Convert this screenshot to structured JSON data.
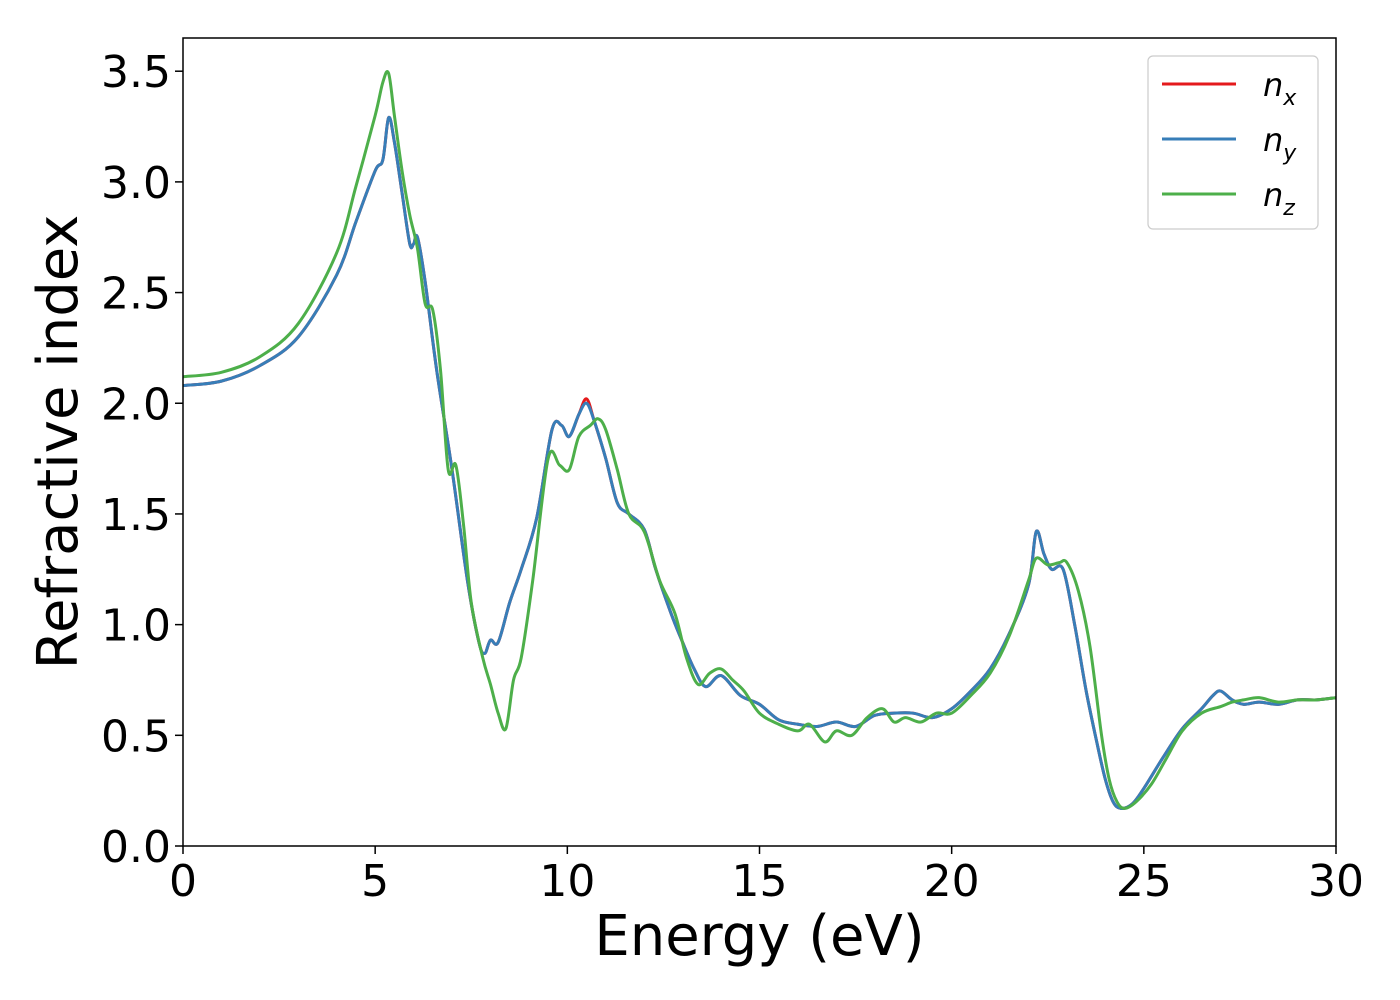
{
  "chart_data": {
    "type": "line",
    "xlabel": "Energy (eV)",
    "ylabel": "Refractive index",
    "xlim": [
      0,
      30
    ],
    "ylim": [
      0,
      3.65
    ],
    "xticks": [
      0,
      5,
      10,
      15,
      20,
      25,
      30
    ],
    "xtick_labels": [
      "0",
      "5",
      "10",
      "15",
      "20",
      "25",
      "30"
    ],
    "yticks": [
      0.0,
      0.5,
      1.0,
      1.5,
      2.0,
      2.5,
      3.0,
      3.5
    ],
    "ytick_labels": [
      "0.0",
      "0.5",
      "1.0",
      "1.5",
      "2.0",
      "2.5",
      "3.0",
      "3.5"
    ],
    "grid": false,
    "legend_position": "top-right",
    "series": [
      {
        "name": "n_x",
        "label_base": "n",
        "label_sub": "x",
        "color": "#e41a1c",
        "x": [
          0,
          1,
          2,
          3,
          4,
          4.5,
          5,
          5.2,
          5.35,
          5.5,
          5.7,
          5.9,
          6.0,
          6.1,
          6.3,
          6.6,
          7.0,
          7.4,
          7.7,
          7.85,
          8.0,
          8.2,
          8.5,
          8.8,
          9.2,
          9.6,
          9.85,
          10.05,
          10.3,
          10.5,
          10.7,
          11.0,
          11.3,
          11.6,
          12.0,
          12.3,
          12.7,
          13.0,
          13.3,
          13.6,
          14.0,
          14.5,
          15.0,
          15.5,
          16.0,
          16.5,
          17.0,
          17.5,
          18.0,
          18.5,
          19.0,
          19.5,
          20.0,
          20.5,
          21.0,
          21.5,
          22.0,
          22.2,
          22.4,
          22.6,
          22.9,
          23.2,
          23.5,
          23.8,
          24.0,
          24.2,
          24.4,
          24.7,
          25.0,
          25.5,
          26.0,
          26.5,
          26.8,
          27.0,
          27.3,
          27.6,
          28.0,
          28.5,
          29.0,
          29.5,
          30.0
        ],
        "y": [
          2.08,
          2.1,
          2.17,
          2.3,
          2.58,
          2.82,
          3.05,
          3.1,
          3.29,
          3.18,
          2.95,
          2.72,
          2.72,
          2.75,
          2.55,
          2.15,
          1.7,
          1.2,
          0.92,
          0.87,
          0.93,
          0.92,
          1.1,
          1.25,
          1.48,
          1.88,
          1.9,
          1.85,
          1.95,
          2.02,
          1.92,
          1.75,
          1.55,
          1.5,
          1.43,
          1.25,
          1.05,
          0.92,
          0.8,
          0.72,
          0.77,
          0.68,
          0.64,
          0.57,
          0.55,
          0.54,
          0.56,
          0.54,
          0.59,
          0.6,
          0.6,
          0.58,
          0.62,
          0.7,
          0.8,
          0.96,
          1.18,
          1.42,
          1.32,
          1.25,
          1.25,
          1.0,
          0.7,
          0.45,
          0.3,
          0.2,
          0.17,
          0.19,
          0.26,
          0.4,
          0.53,
          0.62,
          0.68,
          0.7,
          0.66,
          0.64,
          0.65,
          0.64,
          0.66,
          0.66,
          0.67
        ]
      },
      {
        "name": "n_y",
        "label_base": "n",
        "label_sub": "y",
        "color": "#377eb8",
        "x": [
          0,
          1,
          2,
          3,
          4,
          4.5,
          5,
          5.2,
          5.35,
          5.5,
          5.7,
          5.9,
          6.0,
          6.1,
          6.3,
          6.6,
          7.0,
          7.4,
          7.7,
          7.85,
          8.0,
          8.2,
          8.5,
          8.8,
          9.2,
          9.6,
          9.85,
          10.05,
          10.3,
          10.5,
          10.7,
          11.0,
          11.3,
          11.6,
          12.0,
          12.3,
          12.7,
          13.0,
          13.3,
          13.6,
          14.0,
          14.5,
          15.0,
          15.5,
          16.0,
          16.5,
          17.0,
          17.5,
          18.0,
          18.5,
          19.0,
          19.5,
          20.0,
          20.5,
          21.0,
          21.5,
          22.0,
          22.2,
          22.4,
          22.6,
          22.9,
          23.2,
          23.5,
          23.8,
          24.0,
          24.2,
          24.4,
          24.7,
          25.0,
          25.5,
          26.0,
          26.5,
          26.8,
          27.0,
          27.3,
          27.6,
          28.0,
          28.5,
          29.0,
          29.5,
          30.0
        ],
        "y": [
          2.08,
          2.1,
          2.17,
          2.3,
          2.58,
          2.82,
          3.05,
          3.1,
          3.29,
          3.18,
          2.95,
          2.72,
          2.72,
          2.75,
          2.55,
          2.15,
          1.7,
          1.2,
          0.92,
          0.87,
          0.93,
          0.92,
          1.1,
          1.25,
          1.48,
          1.88,
          1.9,
          1.85,
          1.95,
          2.0,
          1.92,
          1.75,
          1.55,
          1.5,
          1.43,
          1.25,
          1.05,
          0.92,
          0.8,
          0.72,
          0.77,
          0.68,
          0.64,
          0.57,
          0.55,
          0.54,
          0.56,
          0.54,
          0.59,
          0.6,
          0.6,
          0.58,
          0.62,
          0.7,
          0.8,
          0.96,
          1.18,
          1.42,
          1.32,
          1.25,
          1.25,
          1.0,
          0.7,
          0.45,
          0.3,
          0.2,
          0.17,
          0.19,
          0.26,
          0.4,
          0.53,
          0.62,
          0.68,
          0.7,
          0.66,
          0.64,
          0.65,
          0.64,
          0.66,
          0.66,
          0.67
        ]
      },
      {
        "name": "n_z",
        "label_base": "n",
        "label_sub": "z",
        "color": "#4daf4a",
        "x": [
          0,
          1,
          2,
          3,
          4,
          4.5,
          5,
          5.2,
          5.35,
          5.5,
          5.7,
          5.9,
          6.1,
          6.3,
          6.5,
          6.7,
          6.9,
          7.1,
          7.3,
          7.5,
          7.8,
          8.0,
          8.2,
          8.4,
          8.6,
          8.8,
          9.1,
          9.5,
          9.8,
          10.05,
          10.3,
          10.6,
          10.8,
          11.0,
          11.3,
          11.6,
          12.0,
          12.4,
          12.8,
          13.1,
          13.4,
          13.7,
          14.0,
          14.3,
          14.6,
          15.0,
          15.5,
          16.0,
          16.3,
          16.7,
          17.0,
          17.4,
          17.8,
          18.2,
          18.5,
          18.8,
          19.2,
          19.6,
          20.0,
          20.5,
          21.0,
          21.5,
          22.0,
          22.2,
          22.5,
          22.8,
          23.0,
          23.3,
          23.6,
          23.9,
          24.1,
          24.3,
          24.5,
          24.8,
          25.2,
          25.6,
          26.0,
          26.5,
          27.0,
          27.3,
          27.6,
          28.0,
          28.5,
          29.0,
          29.5,
          30.0
        ],
        "y": [
          2.12,
          2.14,
          2.21,
          2.36,
          2.68,
          2.98,
          3.3,
          3.45,
          3.49,
          3.3,
          3.05,
          2.85,
          2.7,
          2.45,
          2.42,
          2.15,
          1.7,
          1.72,
          1.45,
          1.1,
          0.85,
          0.73,
          0.6,
          0.53,
          0.75,
          0.85,
          1.2,
          1.75,
          1.72,
          1.7,
          1.85,
          1.9,
          1.93,
          1.88,
          1.7,
          1.5,
          1.42,
          1.2,
          1.05,
          0.85,
          0.73,
          0.78,
          0.8,
          0.75,
          0.7,
          0.6,
          0.55,
          0.52,
          0.55,
          0.47,
          0.52,
          0.5,
          0.58,
          0.62,
          0.56,
          0.58,
          0.56,
          0.6,
          0.6,
          0.68,
          0.78,
          0.95,
          1.2,
          1.3,
          1.27,
          1.28,
          1.28,
          1.15,
          0.9,
          0.5,
          0.3,
          0.2,
          0.17,
          0.2,
          0.28,
          0.4,
          0.52,
          0.6,
          0.63,
          0.65,
          0.66,
          0.67,
          0.65,
          0.66,
          0.66,
          0.67
        ]
      }
    ]
  }
}
